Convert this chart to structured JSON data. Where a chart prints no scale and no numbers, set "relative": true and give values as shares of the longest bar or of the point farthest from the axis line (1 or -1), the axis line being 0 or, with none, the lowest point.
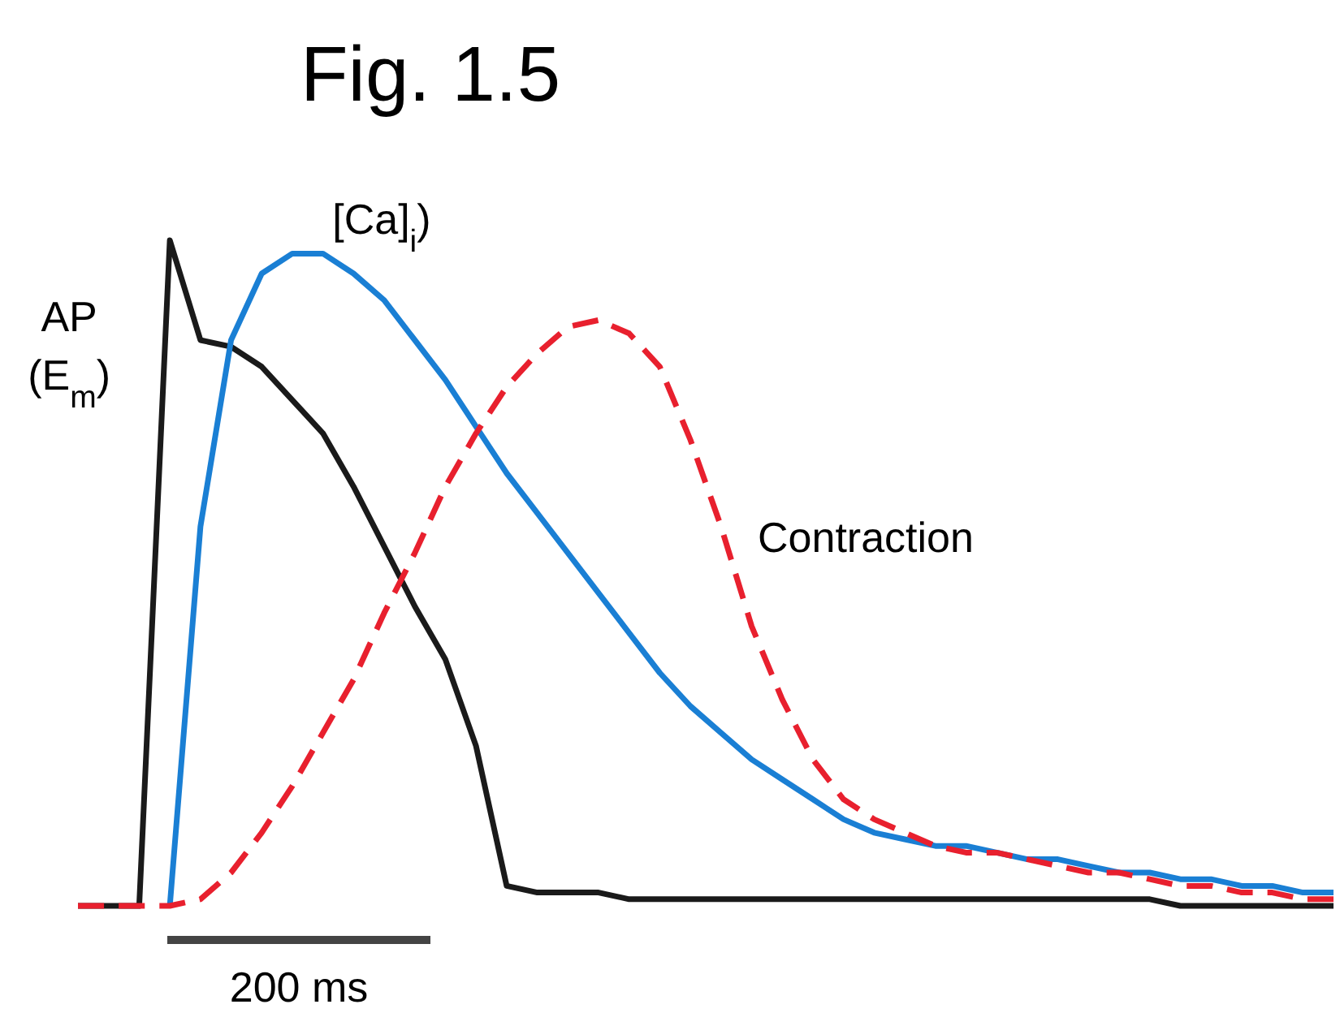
{
  "chart_data": {
    "type": "line",
    "title": "Fig. 1.5",
    "relative": true,
    "tick_labels": false,
    "annotations": [
      "200 ms"
    ],
    "categories": [
      null,
      null,
      null,
      null,
      null,
      null,
      null,
      null,
      null,
      null,
      null,
      null,
      null,
      null,
      null,
      null,
      null,
      null,
      null,
      null,
      null,
      null,
      null,
      null,
      null,
      null,
      null,
      null,
      null,
      null,
      null,
      null,
      null,
      null,
      null,
      null,
      null,
      null,
      null,
      null,
      null,
      null
    ],
    "series": [
      {
        "name": "AP (E$_{m}$)",
        "color": "#1a1a1a",
        "line_style": "solid",
        "values": [
          0,
          0,
          0,
          1,
          0.85,
          0.84,
          0.81,
          0.76,
          0.71,
          0.63,
          0.54,
          0.45,
          0.37,
          0.24,
          0.03,
          0.02,
          0.02,
          0.02,
          0.01,
          0.01,
          0.01,
          0.01,
          0.01,
          0.01,
          0.01,
          0.01,
          0.01,
          0.01,
          0.01,
          0.01,
          0.01,
          0.01,
          0.01,
          0.01,
          0.01,
          0.01,
          0,
          0,
          0,
          0,
          0,
          0
        ]
      },
      {
        "name": "[Ca]$_{i}$)",
        "color": "#1a7fd4",
        "line_style": "solid",
        "values": [
          null,
          null,
          null,
          0,
          0.57,
          0.85,
          0.95,
          0.98,
          0.98,
          0.95,
          0.91,
          0.85,
          0.79,
          0.72,
          0.65,
          0.59,
          0.53,
          0.47,
          0.41,
          0.35,
          0.3,
          0.26,
          0.22,
          0.19,
          0.16,
          0.13,
          0.11,
          0.1,
          0.09,
          0.09,
          0.08,
          0.07,
          0.07,
          0.06,
          0.05,
          0.05,
          0.04,
          0.04,
          0.03,
          0.03,
          0.02,
          0.02
        ]
      },
      {
        "name": "Contraction",
        "color": "#e8202e",
        "line_style": "dashed",
        "values": [
          0,
          0,
          0,
          0,
          0.01,
          0.05,
          0.11,
          0.18,
          0.26,
          0.34,
          0.44,
          0.53,
          0.63,
          0.71,
          0.78,
          0.83,
          0.87,
          0.88,
          0.86,
          0.81,
          0.7,
          0.57,
          0.42,
          0.31,
          0.22,
          0.16,
          0.13,
          0.11,
          0.09,
          0.08,
          0.08,
          0.07,
          0.06,
          0.05,
          0.05,
          0.04,
          0.03,
          0.03,
          0.02,
          0.02,
          0.01,
          0.01
        ]
      }
    ]
  }
}
